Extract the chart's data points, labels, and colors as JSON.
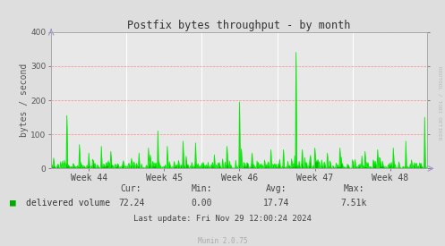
{
  "title": "Postfix bytes throughput - by month",
  "ylabel": "bytes / second",
  "bg_color": "#dedede",
  "plot_bg_color": "#e8e8e8",
  "line_color": "#00ee00",
  "fill_color": "#00bb00",
  "ylim": [
    0,
    400
  ],
  "yticks": [
    0,
    100,
    200,
    300,
    400
  ],
  "week_labels": [
    "Week 44",
    "Week 45",
    "Week 46",
    "Week 47",
    "Week 48"
  ],
  "legend_label": "delivered volume",
  "legend_color": "#00aa00",
  "cur": "72.24",
  "min": "0.00",
  "avg": "17.74",
  "max": "7.51k",
  "last_update": "Last update: Fri Nov 29 12:00:24 2024",
  "munin_version": "Munin 2.0.75",
  "rrdtool_label": "RRDTOOL / TOBI OETIKER",
  "n_points": 600
}
